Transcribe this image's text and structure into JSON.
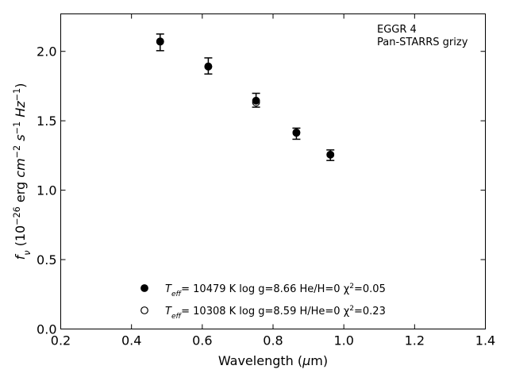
{
  "chart_data": {
    "type": "scatter",
    "annotation_lines": [
      "EGGR 4",
      "Pan-STARRS grizy"
    ],
    "xlabel": {
      "prefix": "Wavelength (",
      "symbol": "μ",
      "suffix": "m)"
    },
    "ylabel": {
      "parts": [
        {
          "text": "f",
          "style": "italic"
        },
        {
          "text": "ν",
          "style": "italic",
          "shift": "sub"
        },
        {
          "text": " (10"
        },
        {
          "text": "−26",
          "shift": "super"
        },
        {
          "text": " erg "
        },
        {
          "text": "cm",
          "style": "italic"
        },
        {
          "text": "−2",
          "shift": "super"
        },
        {
          "text": " "
        },
        {
          "text": "s",
          "style": "italic"
        },
        {
          "text": "−1",
          "shift": "super"
        },
        {
          "text": " "
        },
        {
          "text": "Hz",
          "style": "italic"
        },
        {
          "text": "−1",
          "shift": "super"
        },
        {
          "text": ")"
        }
      ]
    },
    "xlim": [
      0.2,
      1.4
    ],
    "ylim": [
      0.0,
      2.27
    ],
    "xticks": [
      0.2,
      0.4,
      0.6,
      0.8,
      1.0,
      1.2,
      1.4
    ],
    "xtick_labels": [
      "0.2",
      "0.4",
      "0.6",
      "0.8",
      "1.0",
      "1.2",
      "1.4"
    ],
    "yticks": [
      0.0,
      0.5,
      1.0,
      1.5,
      2.0
    ],
    "ytick_labels": [
      "0.0",
      "0.5",
      "1.0",
      "1.5",
      "2.0"
    ],
    "grid": false,
    "legend_position": "lower-center",
    "observed": {
      "x": [
        0.481,
        0.617,
        0.752,
        0.866,
        0.962
      ],
      "y": [
        2.065,
        1.895,
        1.648,
        1.407,
        1.252
      ],
      "yerr": [
        0.06,
        0.058,
        0.05,
        0.04,
        0.038
      ]
    },
    "series": [
      {
        "marker": "filled",
        "legend_parts": [
          {
            "text": "T",
            "style": "italic"
          },
          {
            "text": "eff",
            "style": "italic",
            "shift": "sub"
          },
          {
            "text": "= 10479 K  log g=8.66  He/H=0  "
          },
          {
            "text": "χ"
          },
          {
            "text": "2",
            "shift": "super"
          },
          {
            "text": "=0.05"
          }
        ],
        "x": [
          0.481,
          0.617,
          0.752,
          0.866,
          0.962
        ],
        "y": [
          2.07,
          1.89,
          1.645,
          1.413,
          1.256
        ]
      },
      {
        "marker": "open",
        "legend_parts": [
          {
            "text": "T",
            "style": "italic"
          },
          {
            "text": "eff",
            "style": "italic",
            "shift": "sub"
          },
          {
            "text": "= 10308 K  log g=8.59  H/He=0  "
          },
          {
            "text": "χ"
          },
          {
            "text": "2",
            "shift": "super"
          },
          {
            "text": "=0.23"
          }
        ],
        "x": [
          0.481,
          0.617,
          0.752,
          0.866,
          0.962
        ],
        "y": [
          2.072,
          1.892,
          1.632,
          1.416,
          1.256
        ]
      }
    ],
    "colors": {
      "marker": "#000000",
      "axes": "#000000",
      "background": "#ffffff"
    }
  }
}
